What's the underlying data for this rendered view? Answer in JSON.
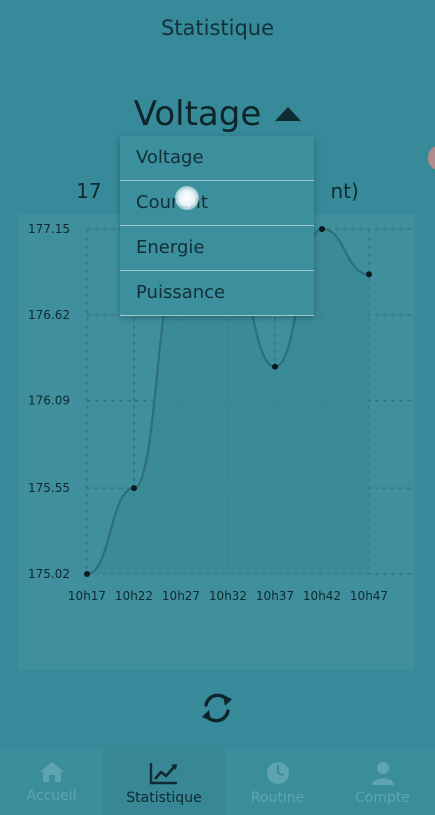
{
  "header": {
    "title": "Statistique"
  },
  "selector": {
    "label": "Voltage"
  },
  "subtitle": {
    "text": "17                                    nt)"
  },
  "dropdown": {
    "options": [
      "Voltage",
      "Courant",
      "Energie",
      "Puissance"
    ]
  },
  "chart_data": {
    "type": "line",
    "x": [
      "10h17",
      "10h22",
      "10h27",
      "10h32",
      "10h37",
      "10h42",
      "10h47"
    ],
    "y_ticks": [
      "175.02",
      "175.55",
      "176.09",
      "176.62",
      "177.15"
    ],
    "ylim": [
      175.02,
      177.15
    ],
    "series": [
      {
        "values": [
          175.02,
          175.55,
          177.0,
          177.0,
          176.3,
          177.15,
          176.87
        ]
      }
    ],
    "grid": true,
    "colors": {
      "line": "#2d6f7b",
      "fill": "#3a8896",
      "point": "#0b1a1d",
      "grid": "#2e6d79"
    }
  },
  "tabs": [
    {
      "label": "Accueil",
      "icon": "home-icon",
      "active": false
    },
    {
      "label": "Statistique",
      "icon": "chart-line-icon",
      "active": true
    },
    {
      "label": "Routine",
      "icon": "clock-icon",
      "active": false
    },
    {
      "label": "Compte",
      "icon": "user-icon",
      "active": false
    }
  ]
}
